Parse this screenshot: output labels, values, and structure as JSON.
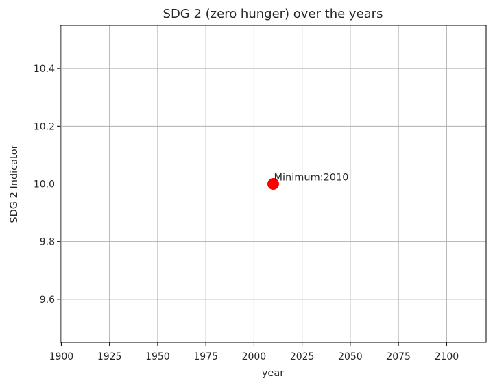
{
  "chart_data": {
    "type": "scatter",
    "title": "SDG 2 (zero hunger) over the years",
    "xlabel": "year",
    "ylabel": "SDG 2 Indicator",
    "xlim": [
      1899.5,
      2120.5
    ],
    "ylim": [
      9.45,
      10.55
    ],
    "xticks": [
      1900,
      1925,
      1950,
      1975,
      2000,
      2025,
      2050,
      2075,
      2100
    ],
    "yticks": [
      9.6,
      9.8,
      10.0,
      10.2,
      10.4
    ],
    "ytick_labels": [
      "9.6",
      "9.8",
      "10.0",
      "10.2",
      "10.4"
    ],
    "grid": true,
    "points": [
      {
        "x": 2010,
        "y": 10.0,
        "color": "#ff0000"
      }
    ],
    "annotations": [
      {
        "text": "Minimum:2010",
        "x": 2010,
        "y": 10.0
      }
    ]
  }
}
